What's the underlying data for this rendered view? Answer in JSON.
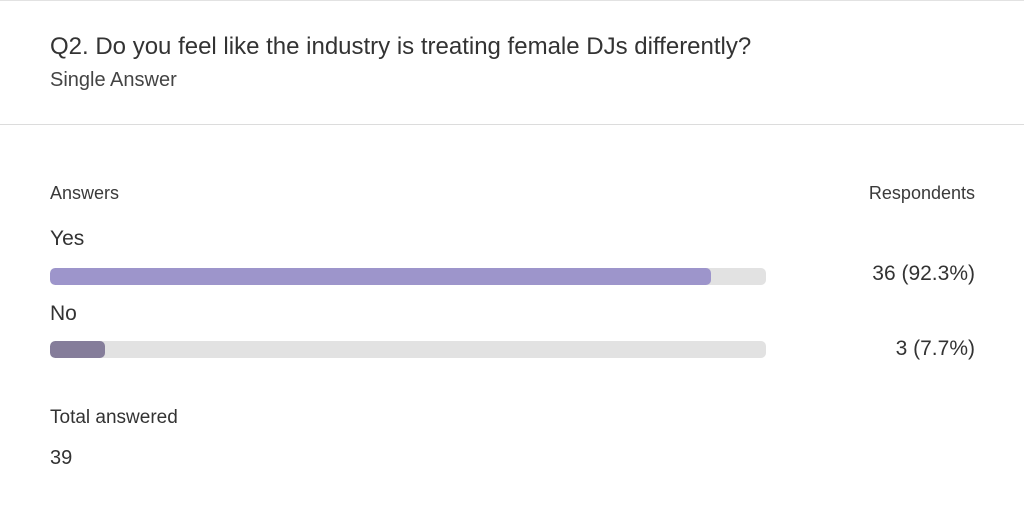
{
  "header": {
    "question": "Q2. Do you feel like the industry is treating female DJs differently?",
    "answer_type": "Single Answer"
  },
  "columns": {
    "answers": "Answers",
    "respondents": "Respondents"
  },
  "chart_data": {
    "type": "bar",
    "orientation": "horizontal",
    "title": "Q2. Do you feel like the industry is treating female DJs differently?",
    "categories": [
      "Yes",
      "No"
    ],
    "values": [
      36,
      3
    ],
    "percent": [
      92.3,
      7.7
    ],
    "value_labels": [
      "36 (92.3%)",
      "3 (7.7%)"
    ],
    "colors": [
      "#9d95cb",
      "#857d9a"
    ],
    "track_color": "#e2e2e2",
    "xlim": [
      0,
      100
    ],
    "grid": false
  },
  "totals": {
    "label": "Total answered",
    "value": "39"
  }
}
